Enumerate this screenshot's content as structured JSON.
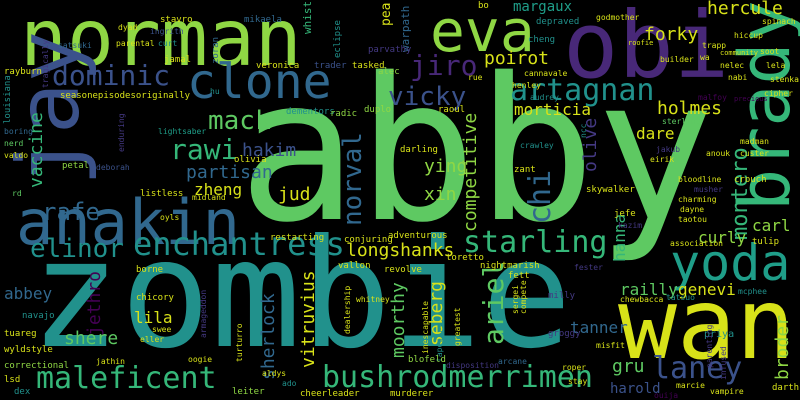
{
  "palette": {
    "background": "#000000",
    "yellow": "#d8e219",
    "lime": "#8fd744",
    "green": "#35b779",
    "green2": "#5ec962",
    "teal": "#21918c",
    "teal2": "#1f9e89",
    "blue": "#31688e",
    "blue2": "#3b528b",
    "purple": "#443983",
    "violet": "#482878",
    "dark": "#440154"
  },
  "words": [
    {
      "key": "abby",
      "text": "abby"
    },
    {
      "key": "zombie",
      "text": "zombie"
    },
    {
      "key": "wan",
      "text": "wan"
    },
    {
      "key": "obi",
      "text": "obi"
    },
    {
      "key": "norman",
      "text": "norman"
    },
    {
      "key": "jay",
      "text": "jay"
    },
    {
      "key": "anakin",
      "text": "anakin"
    },
    {
      "key": "brady",
      "text": "brady"
    },
    {
      "key": "eva",
      "text": "eva"
    },
    {
      "key": "yoda",
      "text": "yoda"
    },
    {
      "key": "clone",
      "text": "clone"
    },
    {
      "key": "enchantress",
      "text": "enchantress"
    },
    {
      "key": "maleficent",
      "text": "maleficent"
    },
    {
      "key": "bushrodmerrimen",
      "text": "bushrodmerrimen"
    },
    {
      "key": "starling",
      "text": "starling"
    },
    {
      "key": "laney",
      "text": "laney"
    },
    {
      "key": "artagnan",
      "text": "artagnan"
    },
    {
      "key": "dominic",
      "text": "dominic"
    },
    {
      "key": "elinor",
      "text": "elinor"
    },
    {
      "key": "rawi",
      "text": "rawi"
    },
    {
      "key": "mack",
      "text": "mack"
    },
    {
      "key": "jiro",
      "text": "jiro"
    },
    {
      "key": "vicky",
      "text": "vicky"
    },
    {
      "key": "norval",
      "text": "norval"
    },
    {
      "key": "chi",
      "text": "chi"
    },
    {
      "key": "montero",
      "text": "montero"
    },
    {
      "key": "rafe",
      "text": "rafe"
    },
    {
      "key": "ariel",
      "text": "ariel"
    },
    {
      "key": "poirot",
      "text": "poirot"
    },
    {
      "key": "holmes",
      "text": "holmes"
    },
    {
      "key": "hercule",
      "text": "hercule"
    },
    {
      "key": "forky",
      "text": "forky"
    },
    {
      "key": "margaux",
      "text": "margaux"
    },
    {
      "key": "morticia",
      "text": "morticia"
    },
    {
      "key": "partisan",
      "text": "partisan"
    },
    {
      "key": "hakim",
      "text": "hakim"
    },
    {
      "key": "zheng",
      "text": "zheng"
    },
    {
      "key": "jud",
      "text": "jud"
    },
    {
      "key": "ying",
      "text": "ying"
    },
    {
      "key": "xin",
      "text": "xin"
    },
    {
      "key": "longshanks",
      "text": "longshanks"
    },
    {
      "key": "competitive",
      "text": "competitive"
    },
    {
      "key": "curly",
      "text": "curly"
    },
    {
      "key": "carl",
      "text": "carl"
    },
    {
      "key": "dare",
      "text": "dare"
    },
    {
      "key": "hanna",
      "text": "hanna"
    },
    {
      "key": "olive",
      "text": "olive"
    },
    {
      "key": "vaccine",
      "text": "vaccine"
    },
    {
      "key": "abbey",
      "text": "abbey"
    },
    {
      "key": "gru",
      "text": "gru"
    },
    {
      "key": "lila",
      "text": "lila"
    },
    {
      "key": "shere",
      "text": "shere"
    },
    {
      "key": "sherlock",
      "text": "sherlock"
    },
    {
      "key": "vitruvius",
      "text": "vitruvius"
    },
    {
      "key": "moorthy",
      "text": "moorthy"
    },
    {
      "key": "seberg",
      "text": "seberg"
    },
    {
      "key": "railly",
      "text": "railly"
    },
    {
      "key": "genevi",
      "text": "genevi"
    },
    {
      "key": "tanner",
      "text": "tanner"
    },
    {
      "key": "priya",
      "text": "priya"
    },
    {
      "key": "harold",
      "text": "harold"
    },
    {
      "key": "broder",
      "text": "broder"
    },
    {
      "key": "jethro",
      "text": "jethro"
    },
    {
      "key": "pea",
      "text": "pea"
    },
    {
      "key": "warpath",
      "text": "warpath"
    },
    {
      "key": "whist",
      "text": "whist"
    },
    {
      "key": "bo",
      "text": "bo"
    },
    {
      "key": "godmother",
      "text": "godmother"
    },
    {
      "key": "depraved",
      "text": "depraved"
    },
    {
      "key": "cheng",
      "text": "cheng"
    },
    {
      "key": "cannavale",
      "text": "cannavale"
    },
    {
      "key": "henley",
      "text": "henley"
    },
    {
      "key": "audrey",
      "text": "audrey"
    },
    {
      "key": "stavro",
      "text": "stavro"
    },
    {
      "key": "ingrith",
      "text": "ingrith"
    },
    {
      "key": "curt",
      "text": "curt"
    },
    {
      "key": "jamal",
      "text": "jamal"
    },
    {
      "key": "mikaela",
      "text": "mikaela"
    },
    {
      "key": "parvathy",
      "text": "parvathy"
    },
    {
      "key": "trader",
      "text": "trader"
    },
    {
      "key": "tasked",
      "text": "tasked"
    },
    {
      "key": "alec",
      "text": "alec"
    },
    {
      "key": "rue",
      "text": "rue"
    },
    {
      "key": "veronica",
      "text": "veronica"
    },
    {
      "key": "eclipse",
      "text": "eclipse"
    },
    {
      "key": "dyad",
      "text": "dyad"
    },
    {
      "key": "parental",
      "text": "parental"
    },
    {
      "key": "zoran",
      "text": "zoran"
    },
    {
      "key": "satsuki",
      "text": "satsuki"
    },
    {
      "key": "rayburn",
      "text": "rayburn"
    },
    {
      "key": "seasonepisodesoriginally",
      "text": "seasonepisodesoriginally"
    },
    {
      "key": "tragically",
      "text": "tragically"
    },
    {
      "key": "louisiana",
      "text": "louisiana"
    },
    {
      "key": "boring",
      "text": "boring"
    },
    {
      "key": "nerd",
      "text": "nerd"
    },
    {
      "key": "valdo",
      "text": "valdo"
    },
    {
      "key": "petal",
      "text": "petal"
    },
    {
      "key": "deborah",
      "text": "deborah"
    },
    {
      "key": "enduring",
      "text": "enduring"
    },
    {
      "key": "lightsaber",
      "text": "lightsaber"
    },
    {
      "key": "hu",
      "text": "hu"
    },
    {
      "key": "dementors",
      "text": "dementors"
    },
    {
      "key": "radic",
      "text": "radic"
    },
    {
      "key": "duplo",
      "text": "duplo"
    },
    {
      "key": "raoul",
      "text": "raoul"
    },
    {
      "key": "sterling",
      "text": "sterling"
    },
    {
      "key": "ncc",
      "text": "ncc"
    },
    {
      "key": "crawley",
      "text": "crawley"
    },
    {
      "key": "darling",
      "text": "darling"
    },
    {
      "key": "zant",
      "text": "zant"
    },
    {
      "key": "olivia",
      "text": "olivia"
    },
    {
      "key": "listless",
      "text": "listless"
    },
    {
      "key": "midland",
      "text": "midland"
    },
    {
      "key": "rd",
      "text": "rd"
    },
    {
      "key": "oyls",
      "text": "oyls"
    },
    {
      "key": "restarting",
      "text": "restarting"
    },
    {
      "key": "conjuring",
      "text": "conjuring"
    },
    {
      "key": "adventurous",
      "text": "adventurous"
    },
    {
      "key": "vallon",
      "text": "vallon"
    },
    {
      "key": "revolve",
      "text": "revolve"
    },
    {
      "key": "toretto",
      "text": "toretto"
    },
    {
      "key": "nightmarish",
      "text": "nightmarish"
    },
    {
      "key": "borne",
      "text": "borne"
    },
    {
      "key": "jefe",
      "text": "jefe"
    },
    {
      "key": "kazim",
      "text": "kazim"
    },
    {
      "key": "skywalker",
      "text": "skywalker"
    },
    {
      "key": "fett",
      "text": "fett"
    },
    {
      "key": "fester",
      "text": "fester"
    },
    {
      "key": "chicory",
      "text": "chicory"
    },
    {
      "key": "whitney",
      "text": "whitney"
    },
    {
      "key": "milly",
      "text": "milly"
    },
    {
      "key": "tatsuo",
      "text": "tatsuo"
    },
    {
      "key": "chewbacca",
      "text": "chewbacca"
    },
    {
      "key": "mcphee",
      "text": "mcphee"
    },
    {
      "key": "navajo",
      "text": "navajo"
    },
    {
      "key": "tuareg",
      "text": "tuareg"
    },
    {
      "key": "armageddon",
      "text": "armageddon"
    },
    {
      "key": "swee",
      "text": "swee"
    },
    {
      "key": "eller",
      "text": "eller"
    },
    {
      "key": "dealership",
      "text": "dealership"
    },
    {
      "key": "sergei",
      "text": "sergei"
    },
    {
      "key": "compete",
      "text": "compete"
    },
    {
      "key": "groggy",
      "text": "groggy"
    },
    {
      "key": "misfit",
      "text": "misfit"
    },
    {
      "key": "greatest",
      "text": "greatest"
    },
    {
      "key": "tapestry",
      "text": "tapestry"
    },
    {
      "key": "inescapable",
      "text": "inescapable"
    },
    {
      "key": "blofeld",
      "text": "blofeld"
    },
    {
      "key": "oogie",
      "text": "oogie"
    },
    {
      "key": "jathin",
      "text": "jathin"
    },
    {
      "key": "correctional",
      "text": "correctional"
    },
    {
      "key": "wyldstyle",
      "text": "wyldstyle"
    },
    {
      "key": "lsd",
      "text": "lsd"
    },
    {
      "key": "dex",
      "text": "dex"
    },
    {
      "key": "leiter",
      "text": "leiter"
    },
    {
      "key": "aldys",
      "text": "aldys"
    },
    {
      "key": "turturro",
      "text": "turturro"
    },
    {
      "key": "ado",
      "text": "ado"
    },
    {
      "key": "cheerleader",
      "text": "cheerleader"
    },
    {
      "key": "murderer",
      "text": "murderer"
    },
    {
      "key": "disposition",
      "text": "disposition"
    },
    {
      "key": "arcane",
      "text": "arcane"
    },
    {
      "key": "marcie",
      "text": "marcie"
    },
    {
      "key": "vampire",
      "text": "vampire"
    },
    {
      "key": "darth",
      "text": "darth"
    },
    {
      "key": "infused",
      "text": "infused"
    },
    {
      "key": "parenting",
      "text": "parenting"
    },
    {
      "key": "ouija",
      "text": "ouija"
    },
    {
      "key": "roper",
      "text": "roper"
    },
    {
      "key": "stay",
      "text": "stay"
    },
    {
      "key": "crouch",
      "text": "crouch"
    },
    {
      "key": "tulip",
      "text": "tulip"
    },
    {
      "key": "association",
      "text": "association"
    },
    {
      "key": "taotou",
      "text": "taotou"
    },
    {
      "key": "dayne",
      "text": "dayne"
    },
    {
      "key": "charming",
      "text": "charming"
    },
    {
      "key": "bloodline",
      "text": "bloodline"
    },
    {
      "key": "musher",
      "text": "musher"
    },
    {
      "key": "eirik",
      "text": "eirik"
    },
    {
      "key": "anouk",
      "text": "anouk"
    },
    {
      "key": "madman",
      "text": "madman"
    },
    {
      "key": "custer",
      "text": "custer"
    },
    {
      "key": "jakub",
      "text": "jakub"
    },
    {
      "key": "malfoy",
      "text": "malfoy"
    },
    {
      "key": "cipher",
      "text": "cipher"
    },
    {
      "key": "builder",
      "text": "builder"
    },
    {
      "key": "trapp",
      "text": "trapp"
    },
    {
      "key": "nelec",
      "text": "nelec"
    },
    {
      "key": "nabi",
      "text": "nabi"
    },
    {
      "key": "lela",
      "text": "lela"
    },
    {
      "key": "soot",
      "text": "soot"
    },
    {
      "key": "spinach",
      "text": "spinach"
    },
    {
      "key": "stenka",
      "text": "stenka"
    },
    {
      "key": "roofie",
      "text": "roofie"
    },
    {
      "key": "hiccup",
      "text": "hiccup"
    },
    {
      "key": "precious",
      "text": "precious"
    },
    {
      "key": "community",
      "text": "community"
    },
    {
      "key": "wa",
      "text": "wa"
    }
  ]
}
